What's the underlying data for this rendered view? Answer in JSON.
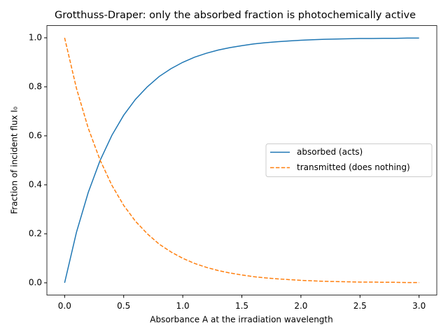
{
  "chart_data": {
    "type": "line",
    "title": "Grotthuss-Draper: only the absorbed fraction is photochemically active",
    "xlabel": "Absorbance A at the irradiation wavelength",
    "ylabel": "Fraction of incident flux I₀",
    "x": [
      0,
      0.1,
      0.2,
      0.3,
      0.4,
      0.5,
      0.6,
      0.7,
      0.8,
      0.9,
      1.0,
      1.1,
      1.2,
      1.3,
      1.4,
      1.5,
      1.6,
      1.7,
      1.8,
      1.9,
      2.0,
      2.1,
      2.2,
      2.3,
      2.4,
      2.5,
      2.6,
      2.7,
      2.8,
      2.9,
      3.0
    ],
    "series": [
      {
        "name": "absorbed (acts)",
        "color": "#1f77b4",
        "dash": "solid",
        "values": [
          0,
          0.206,
          0.369,
          0.499,
          0.602,
          0.684,
          0.749,
          0.8,
          0.842,
          0.874,
          0.9,
          0.921,
          0.937,
          0.95,
          0.96,
          0.968,
          0.975,
          0.98,
          0.984,
          0.987,
          0.99,
          0.992,
          0.994,
          0.995,
          0.996,
          0.997,
          0.997,
          0.998,
          0.998,
          0.999,
          0.999
        ]
      },
      {
        "name": "transmitted (does nothing)",
        "color": "#ff7f0e",
        "dash": "dashed",
        "values": [
          1,
          0.794,
          0.631,
          0.501,
          0.398,
          0.316,
          0.251,
          0.2,
          0.158,
          0.126,
          0.1,
          0.079,
          0.063,
          0.05,
          0.04,
          0.032,
          0.025,
          0.02,
          0.016,
          0.013,
          0.01,
          0.008,
          0.006,
          0.005,
          0.004,
          0.003,
          0.003,
          0.002,
          0.002,
          0.001,
          0.001
        ]
      }
    ],
    "xlim": [
      -0.15,
      3.15
    ],
    "ylim": [
      -0.05,
      1.05
    ],
    "xticks": [
      {
        "value": 0,
        "label": "0.0"
      },
      {
        "value": 0.5,
        "label": "0.5"
      },
      {
        "value": 1,
        "label": "1.0"
      },
      {
        "value": 1.5,
        "label": "1.5"
      },
      {
        "value": 2,
        "label": "2.0"
      },
      {
        "value": 2.5,
        "label": "2.5"
      },
      {
        "value": 3,
        "label": "3.0"
      }
    ],
    "yticks": [
      {
        "value": 0,
        "label": "0.0"
      },
      {
        "value": 0.2,
        "label": "0.2"
      },
      {
        "value": 0.4,
        "label": "0.4"
      },
      {
        "value": 0.6,
        "label": "0.6"
      },
      {
        "value": 0.8,
        "label": "0.8"
      },
      {
        "value": 1,
        "label": "1.0"
      }
    ],
    "grid": false,
    "legend": "center right"
  }
}
